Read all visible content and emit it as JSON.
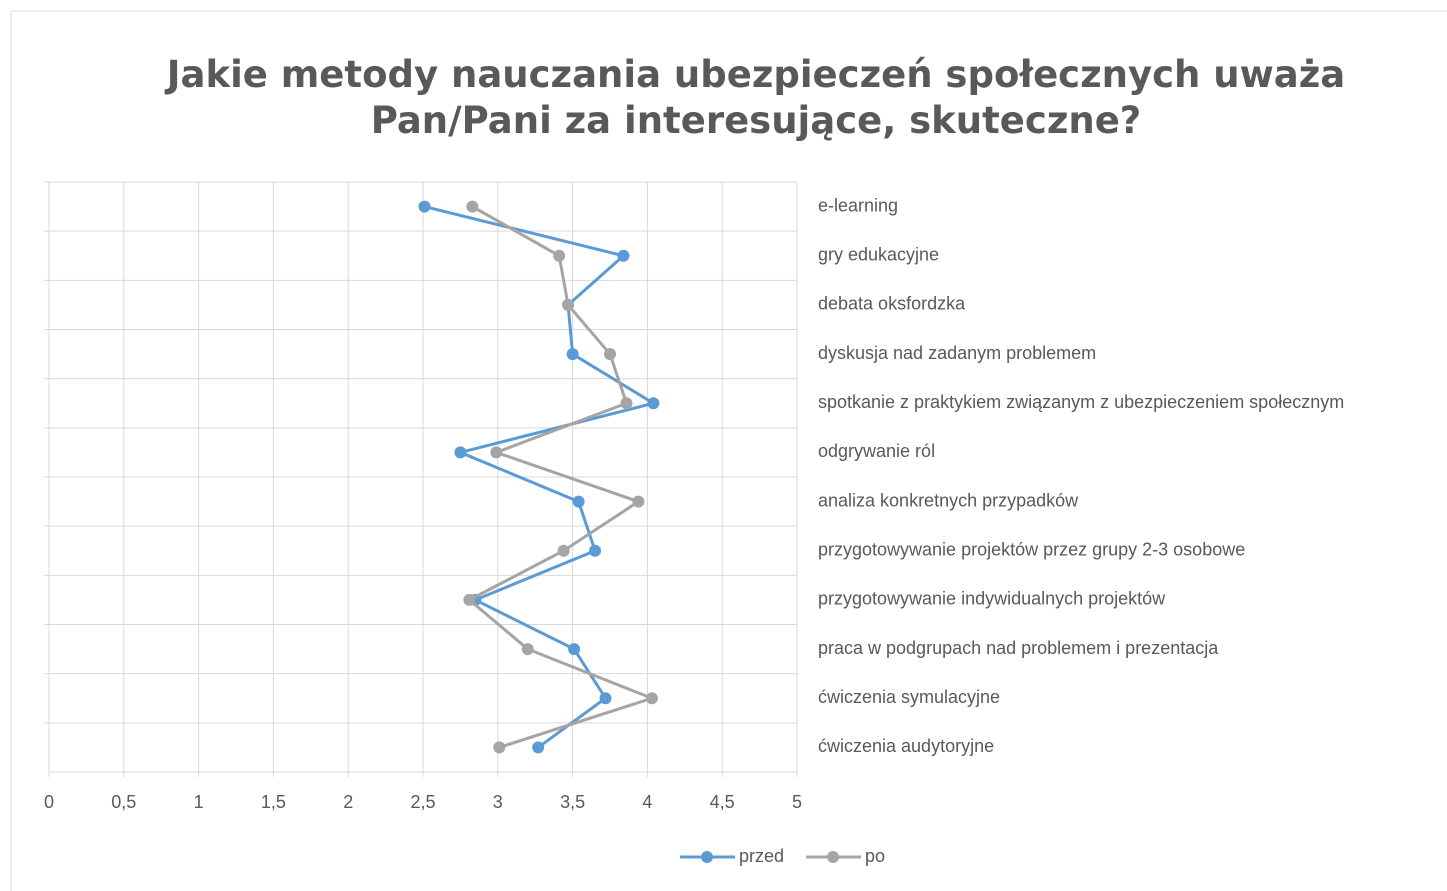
{
  "chart_data": {
    "type": "line",
    "orientation": "horizontal",
    "title": "Jakie metody nauczania ubezpieczeń społecznych uważa Pan/Pani za interesujące, skuteczne?",
    "categories": [
      "e-learning",
      "gry edukacyjne",
      "debata oksfordzka",
      "dyskusja nad zadanym problemem",
      "spotkanie z praktykiem związanym z ubezpieczeniem społecznym",
      "odgrywanie ról",
      "analiza konkretnych przypadków",
      "przygotowywanie projektów przez grupy 2-3 osobowe",
      "przygotowywanie indywidualnych projektów",
      "praca w podgrupach nad problemem i prezentacja",
      "ćwiczenia symulacyjne",
      "ćwiczenia audytoryjne"
    ],
    "series": [
      {
        "name": "przed",
        "color": "#5b9bd5",
        "values": [
          2.51,
          3.84,
          3.47,
          3.5,
          4.04,
          2.75,
          3.54,
          3.65,
          2.85,
          3.51,
          3.72,
          3.27
        ]
      },
      {
        "name": "po",
        "color": "#a5a5a5",
        "values": [
          2.83,
          3.41,
          3.47,
          3.75,
          3.86,
          2.99,
          3.94,
          3.44,
          2.81,
          3.2,
          4.03,
          3.01
        ]
      }
    ],
    "xlim": [
      0,
      5
    ],
    "xticks": [
      0,
      {
        "value": 0.5,
        "label": "0,5"
      },
      1,
      {
        "value": 1.5,
        "label": "1,5"
      },
      2,
      {
        "value": 2.5,
        "label": "2,5"
      },
      3,
      {
        "value": 3.5,
        "label": "3,5"
      },
      4,
      {
        "value": 4.5,
        "label": "4,5"
      },
      5
    ],
    "grid": true,
    "legend": "bottom"
  }
}
